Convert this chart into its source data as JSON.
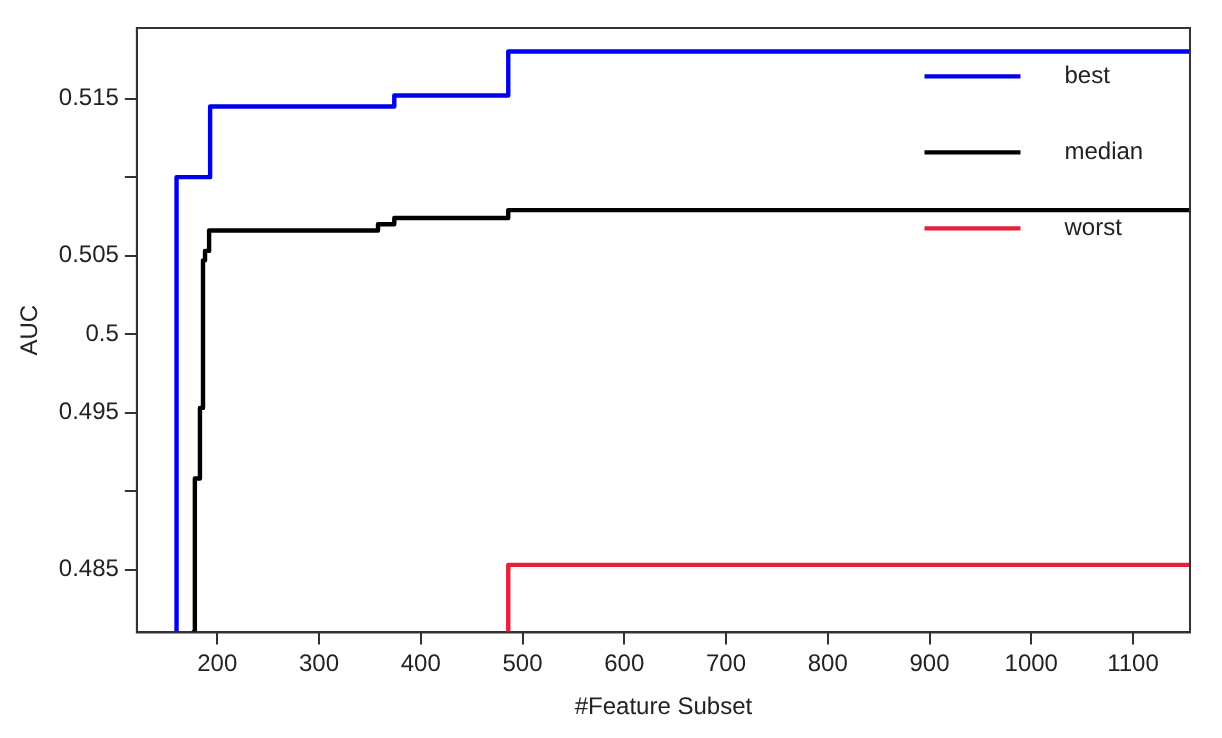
{
  "chart_data": {
    "type": "step",
    "xlabel": "#Feature Subset",
    "ylabel": "AUC",
    "xlim": [
      121,
      1156
    ],
    "xticks": [
      200,
      300,
      400,
      500,
      600,
      700,
      800,
      900,
      1000,
      1100
    ],
    "ylim": [
      0.481,
      0.5195
    ],
    "yticks": [
      0.485,
      {
        "value": 0.49,
        "label": null
      },
      0.495,
      0.5,
      0.505,
      {
        "value": 0.51,
        "label": null
      },
      0.515
    ],
    "grid": false,
    "legend": "top right",
    "marker": "none",
    "line_style": "solid",
    "series": [
      {
        "name": "best",
        "color": "#0000ee",
        "x": [
          160,
          160,
          193,
          374,
          486,
          1156
        ],
        "values": [
          0.481,
          0.51,
          0.5145,
          0.5152,
          0.518,
          0.518
        ]
      },
      {
        "name": "median",
        "color": "#000000",
        "x": [
          175,
          178,
          183,
          186,
          188,
          192,
          358,
          374,
          486,
          1156
        ],
        "values": [
          0.481,
          0.4908,
          0.4953,
          0.5047,
          0.5053,
          0.5066,
          0.507,
          0.5074,
          0.5079,
          0.5079
        ]
      },
      {
        "name": "worst",
        "color": "#e8203a",
        "x": [
          486,
          486,
          1156
        ],
        "values": [
          0.481,
          0.4853,
          0.4853
        ]
      }
    ]
  }
}
